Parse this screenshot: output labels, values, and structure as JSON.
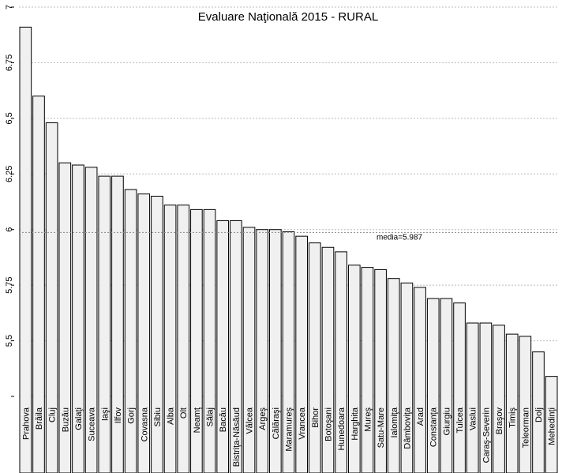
{
  "chart_data": {
    "type": "bar",
    "title": "Evaluare Naţională 2015 - RURAL",
    "xlabel": "",
    "ylabel": "",
    "ylim": [
      5.25,
      7.0
    ],
    "yticks": [
      "7",
      "6.75",
      "6.5",
      "6.25",
      "6",
      "5.75",
      "5.5",
      ""
    ],
    "grid": true,
    "mean_label": "media=5.987",
    "mean_value": 5.987,
    "categories": [
      "Prahova",
      "Brăila",
      "Cluj",
      "Buzău",
      "Galaţi",
      "Suceava",
      "Iaşi",
      "Ilfov",
      "Gorj",
      "Covasna",
      "Sibiu",
      "Alba",
      "Olt",
      "Neamţ",
      "Sălaj",
      "Bacău",
      "Bistriţa-Năsăud",
      "Vâlcea",
      "Argeş",
      "Călăraşi",
      "Maramureş",
      "Vrancea",
      "Bihor",
      "Botoşani",
      "Hunedoara",
      "Harghita",
      "Mureş",
      "Satu-Mare",
      "Ialomiţa",
      "Dâmboviţa",
      "Arad",
      "Constanţa",
      "Giurgiu",
      "Tulcea",
      "Vaslui",
      "Caraş-Severin",
      "Braşov",
      "Timiş",
      "Teleorman",
      "Dolj",
      "Mehedinţi"
    ],
    "values": [
      6.91,
      6.6,
      6.48,
      6.3,
      6.29,
      6.28,
      6.24,
      6.24,
      6.18,
      6.16,
      6.15,
      6.11,
      6.11,
      6.09,
      6.09,
      6.04,
      6.04,
      6.01,
      6.0,
      6.0,
      5.99,
      5.97,
      5.94,
      5.92,
      5.9,
      5.84,
      5.83,
      5.82,
      5.78,
      5.76,
      5.74,
      5.69,
      5.69,
      5.67,
      5.58,
      5.58,
      5.57,
      5.53,
      5.52,
      5.45,
      5.34
    ]
  }
}
